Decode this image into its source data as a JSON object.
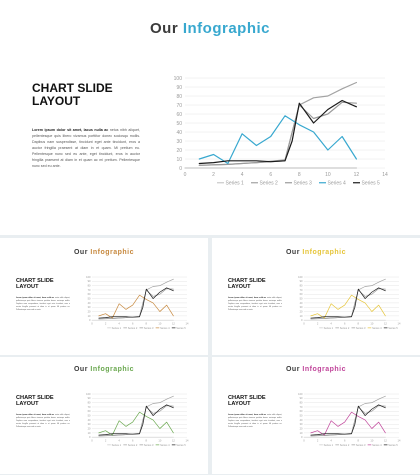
{
  "slides": [
    {
      "title_main": "Our",
      "title_accent": "Infographic",
      "accent": "#38a8cf",
      "heading_line1": "CHART SLIDE",
      "heading_line2": "LAYOUT",
      "body_lead": "Lorem ipsum dolor sit amet, lacus nulla ac",
      "body_rest": "netus nibh aliquet, pellentesque quis libero vivamus porttitor donec sociosqu mollis. Dapibus nam suspendisse, tincidunt eget ante tincidunt, eros a auctor fringilla praesent at diam in et quam. Mi pretium eu. Pellentesque nunc sed eu ante, eget tincidunt, eros in auctor fringilla praesent at diam in et quam ac mi pretium. Pellentesque nunc sed eu ante."
    },
    {
      "title_main": "Our",
      "title_accent": "Infographic",
      "accent": "#c7893f",
      "heading_line1": "CHART SLIDE",
      "heading_line2": "LAYOUT",
      "body_lead": "Lorem ipsum dolor sit amet, lacus nulla ac",
      "body_rest": "netus nibh aliquet, pellentesque quis libero vivamus porttitor donec sociosqu mollis. Dapibus nam suspendisse, tincidunt eget ante tincidunt, eros a auctor fringilla praesent at diam in et quam. Mi pretium eu. Pellentesque nunc sed eu ante."
    },
    {
      "title_main": "Our",
      "title_accent": "Infographic",
      "accent": "#e6c53a",
      "heading_line1": "CHART SLIDE",
      "heading_line2": "LAYOUT",
      "body_lead": "Lorem ipsum dolor sit amet, lacus nulla ac",
      "body_rest": "netus nibh aliquet, pellentesque quis libero vivamus porttitor donec sociosqu mollis. Dapibus nam suspendisse, tincidunt eget ante tincidunt, eros a auctor fringilla praesent at diam in et quam. Mi pretium eu. Pellentesque nunc sed eu ante."
    },
    {
      "title_main": "Our",
      "title_accent": "Infographic",
      "accent": "#6aa84f",
      "heading_line1": "CHART SLIDE",
      "heading_line2": "LAYOUT",
      "body_lead": "Lorem ipsum dolor sit amet, lacus nulla ac",
      "body_rest": "netus nibh aliquet, pellentesque quis libero vivamus porttitor donec sociosqu mollis. Dapibus nam suspendisse, tincidunt eget ante tincidunt, eros a auctor fringilla praesent at diam in et quam. Mi pretium eu. Pellentesque nunc sed eu ante."
    },
    {
      "title_main": "Our",
      "title_accent": "Infographic",
      "accent": "#c0449a",
      "heading_line1": "CHART SLIDE",
      "heading_line2": "LAYOUT",
      "body_lead": "Lorem ipsum dolor sit amet, lacus nulla ac",
      "body_rest": "netus nibh aliquet, pellentesque quis libero vivamus porttitor donec sociosqu mollis. Dapibus nam suspendisse, tincidunt eget ante tincidunt, eros a auctor fringilla praesent at diam in et quam. Mi pretium eu. Pellentesque nunc sed eu ante."
    }
  ],
  "chart_data": {
    "type": "line",
    "xlim": [
      0,
      14
    ],
    "ylim": [
      0,
      100
    ],
    "xticks": [
      0,
      2,
      4,
      6,
      8,
      10,
      12,
      14
    ],
    "yticks": [
      0,
      10,
      20,
      30,
      40,
      50,
      60,
      70,
      80,
      90,
      100
    ],
    "grid": true,
    "legend": "bottom",
    "series": [
      {
        "name": "Series 1",
        "color": "#c9c9c9",
        "x": [
          0,
          12
        ],
        "y": [
          0,
          0
        ]
      },
      {
        "name": "Series 2",
        "color": "#a3a3a3",
        "x": [
          1,
          3,
          5,
          7,
          8,
          9,
          10,
          11,
          12
        ],
        "y": [
          3,
          4,
          6,
          9,
          70,
          78,
          80,
          88,
          95
        ]
      },
      {
        "name": "Series 3",
        "color": "#9a9a9a",
        "x": [
          1,
          3,
          5,
          7,
          7.5,
          8,
          9,
          10,
          11,
          12
        ],
        "y": [
          3,
          4,
          6,
          8,
          40,
          70,
          55,
          60,
          73,
          72
        ]
      },
      {
        "name": "Series 4",
        "color": "accent",
        "x": [
          1,
          2,
          3,
          4,
          5,
          6,
          7,
          8,
          9,
          10,
          11,
          12
        ],
        "y": [
          10,
          15,
          5,
          38,
          25,
          35,
          58,
          48,
          40,
          20,
          35,
          10
        ]
      },
      {
        "name": "Series 5",
        "color": "#1a1a1a",
        "x": [
          1,
          2,
          3,
          4,
          5,
          6,
          7,
          7.5,
          8,
          9,
          10,
          11,
          12
        ],
        "y": [
          5,
          6,
          8,
          8,
          8,
          7,
          8,
          30,
          72,
          50,
          65,
          75,
          68
        ]
      }
    ]
  }
}
